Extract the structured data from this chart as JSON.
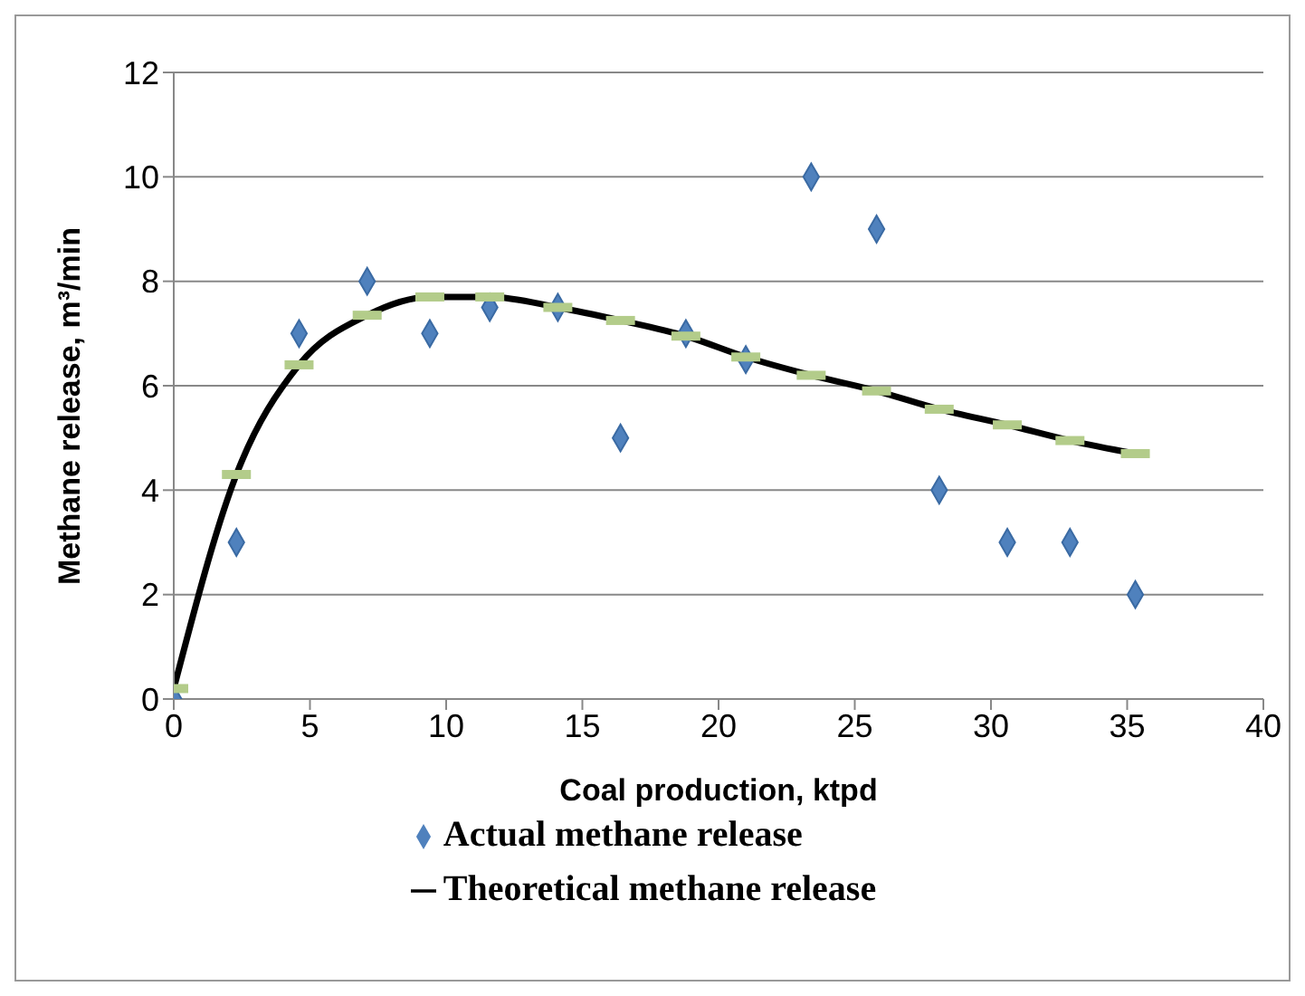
{
  "chart_data": {
    "type": "scatter",
    "xlabel": "Coal production, ktpd",
    "ylabel": "Methane release, m³/min",
    "x": [
      0,
      2.3,
      4.6,
      7.1,
      9.4,
      11.6,
      14.1,
      16.4,
      18.8,
      21.0,
      23.4,
      25.8,
      28.1,
      30.6,
      32.9,
      35.3
    ],
    "series": [
      {
        "name": "Actual methane release",
        "marker": "diamond",
        "color": "#4f81bd",
        "values": [
          0,
          3,
          7,
          8,
          7,
          7.5,
          7.5,
          5,
          7,
          6.5,
          10,
          9,
          4,
          3,
          3,
          2
        ]
      },
      {
        "name": "Theoretical methane release",
        "type": "line",
        "marker": "square",
        "colors": [
          "#b3cc8a",
          "#b3cc8a",
          "#b3cc8a",
          "#b3cc8a",
          "#b3cc8a",
          "#b3cc8a",
          "#b3cc8a",
          "#b3cc8a",
          "#b3cc8a",
          "#b3cc8a",
          "#b3cc8a",
          "#b3cc8a",
          "#b3cc8a",
          "#b3cc8a",
          "#b3cc8a",
          "#b3cc8a"
        ],
        "color": "#000000",
        "values": [
          0.2,
          4.3,
          6.4,
          7.35,
          7.7,
          7.7,
          7.5,
          7.25,
          6.95,
          6.55,
          6.2,
          5.9,
          5.55,
          5.25,
          4.95,
          4.7
        ]
      }
    ],
    "xlim": [
      0,
      40
    ],
    "xticks": [
      0,
      5,
      10,
      15,
      20,
      25,
      30,
      35,
      40
    ],
    "ylim": [
      0,
      12
    ],
    "yticks": [
      0,
      2,
      4,
      6,
      8,
      10,
      12
    ],
    "grid": "y",
    "legend": "bottom"
  }
}
